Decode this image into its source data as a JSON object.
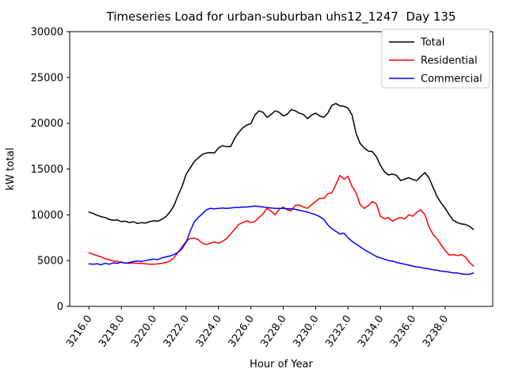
{
  "chart_data": {
    "type": "line",
    "title": "Timeseries Load for urban-suburban uhs12_1247  Day 135",
    "xlabel": "Hour of Year",
    "ylabel": "kW total",
    "grid": false,
    "legend_position": "upper right",
    "xlim": [
      3214.8125,
      3240.9375
    ],
    "ylim": [
      0,
      30000
    ],
    "x_ticks": [
      3216,
      3218,
      3220,
      3222,
      3224,
      3226,
      3228,
      3230,
      3232,
      3234,
      3236,
      3238
    ],
    "x_tick_labels": [
      "3216.0",
      "3218.0",
      "3220.0",
      "3222.0",
      "3224.0",
      "3226.0",
      "3228.0",
      "3230.0",
      "3232.0",
      "3234.0",
      "3236.0",
      "3238.0"
    ],
    "y_ticks": [
      0,
      5000,
      10000,
      15000,
      20000,
      25000,
      30000
    ],
    "y_tick_labels": [
      "0",
      "5000",
      "10000",
      "15000",
      "20000",
      "25000",
      "30000"
    ],
    "x_start": 3216.0,
    "x_step": 0.25,
    "series": [
      {
        "name": "Total",
        "color": "#000000",
        "values": [
          10300,
          10150,
          9950,
          9800,
          9700,
          9500,
          9400,
          9450,
          9250,
          9300,
          9150,
          9250,
          9050,
          9150,
          9100,
          9250,
          9350,
          9300,
          9500,
          9800,
          10300,
          11000,
          12100,
          13100,
          14400,
          15100,
          15800,
          16200,
          16600,
          16750,
          16800,
          16750,
          17300,
          17550,
          17450,
          17450,
          18350,
          19000,
          19500,
          19800,
          19950,
          20900,
          21350,
          21200,
          20650,
          20950,
          21350,
          21200,
          20800,
          21000,
          21500,
          21350,
          21100,
          20950,
          20500,
          20900,
          21100,
          20800,
          20650,
          21100,
          21950,
          22150,
          21900,
          21850,
          21650,
          20900,
          18900,
          17800,
          17300,
          16950,
          16900,
          16350,
          15400,
          14700,
          14350,
          14450,
          14300,
          13750,
          13900,
          14050,
          13850,
          13750,
          14200,
          14600,
          14050,
          13000,
          12000,
          11300,
          10700,
          10000,
          9400,
          9150,
          9000,
          8950,
          8750,
          8400
        ]
      },
      {
        "name": "Residential",
        "color": "#ff0000",
        "values": [
          5850,
          5700,
          5550,
          5400,
          5200,
          5100,
          4950,
          4900,
          4800,
          4750,
          4700,
          4750,
          4700,
          4700,
          4650,
          4600,
          4600,
          4650,
          4700,
          4800,
          4950,
          5300,
          5900,
          6500,
          7100,
          7400,
          7450,
          7300,
          6900,
          6750,
          6900,
          7050,
          6900,
          7100,
          7400,
          7900,
          8400,
          8950,
          9150,
          9350,
          9150,
          9270,
          9700,
          10100,
          10700,
          10400,
          10000,
          10600,
          10850,
          10550,
          10450,
          11050,
          11050,
          10850,
          10700,
          11100,
          11450,
          11800,
          11800,
          12300,
          12400,
          13300,
          14300,
          13900,
          14200,
          13100,
          12400,
          11100,
          10700,
          11000,
          11450,
          11200,
          9850,
          9550,
          9700,
          9300,
          9550,
          9700,
          9550,
          10000,
          9850,
          10300,
          10550,
          10000,
          8700,
          7850,
          7400,
          6700,
          6100,
          5600,
          5650,
          5550,
          5650,
          5400,
          4800,
          4400
        ]
      },
      {
        "name": "Commercial",
        "color": "#0000ff",
        "values": [
          4650,
          4600,
          4650,
          4550,
          4700,
          4600,
          4750,
          4700,
          4850,
          4700,
          4800,
          4900,
          4950,
          4900,
          5000,
          5100,
          5150,
          5100,
          5300,
          5400,
          5500,
          5650,
          5900,
          6300,
          7000,
          8200,
          9200,
          9700,
          10100,
          10550,
          10700,
          10650,
          10700,
          10750,
          10700,
          10750,
          10800,
          10800,
          10850,
          10850,
          10900,
          10950,
          10900,
          10850,
          10800,
          10750,
          10700,
          10700,
          10700,
          10650,
          10650,
          10600,
          10500,
          10400,
          10300,
          10150,
          10000,
          9800,
          9500,
          8900,
          8500,
          8200,
          7900,
          8000,
          7500,
          7100,
          6800,
          6500,
          6200,
          5950,
          5700,
          5450,
          5300,
          5150,
          5000,
          4950,
          4800,
          4700,
          4600,
          4500,
          4400,
          4300,
          4250,
          4150,
          4100,
          4000,
          3950,
          3850,
          3800,
          3750,
          3650,
          3650,
          3550,
          3500,
          3500,
          3650
        ]
      }
    ]
  }
}
